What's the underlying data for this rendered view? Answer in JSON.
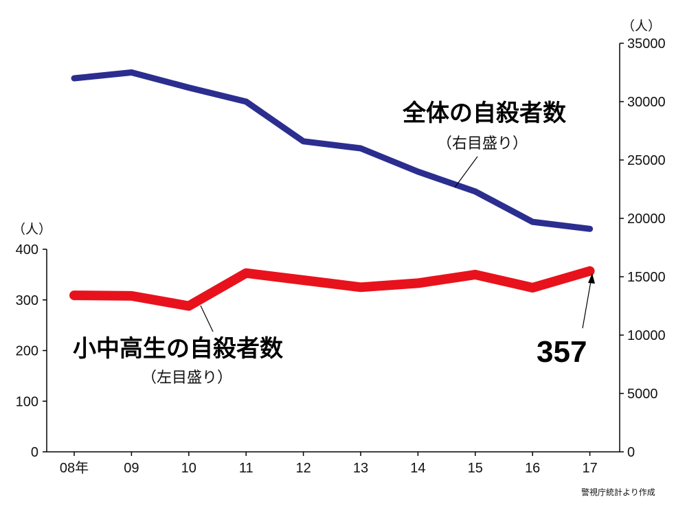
{
  "chart_data": {
    "type": "line",
    "categories": [
      "08年",
      "09",
      "10",
      "11",
      "12",
      "13",
      "14",
      "15",
      "16",
      "17"
    ],
    "series": [
      {
        "name": "全体の自殺者数",
        "name_note": "（右目盛り）",
        "axis": "right",
        "color": "#2b2e8f",
        "values": [
          32000,
          32500,
          31200,
          30000,
          26600,
          26000,
          24000,
          22300,
          19700,
          19100
        ]
      },
      {
        "name": "小中高生の自殺者数",
        "name_note": "（左目盛り）",
        "axis": "left",
        "color": "#e8121c",
        "values": [
          309,
          308,
          288,
          353,
          339,
          325,
          333,
          350,
          324,
          357
        ]
      }
    ],
    "left_axis": {
      "unit": "（人）",
      "ylim": [
        0,
        400
      ],
      "ticks": [
        "0",
        "100",
        "200",
        "300",
        "400"
      ]
    },
    "right_axis": {
      "unit": "（人）",
      "ylim": [
        0,
        35000
      ],
      "ticks": [
        "0",
        "5000",
        "10000",
        "15000",
        "20000",
        "25000",
        "30000",
        "35000"
      ]
    },
    "callout": {
      "text": "357"
    },
    "grid": false,
    "source": "警視庁統計より作成"
  }
}
